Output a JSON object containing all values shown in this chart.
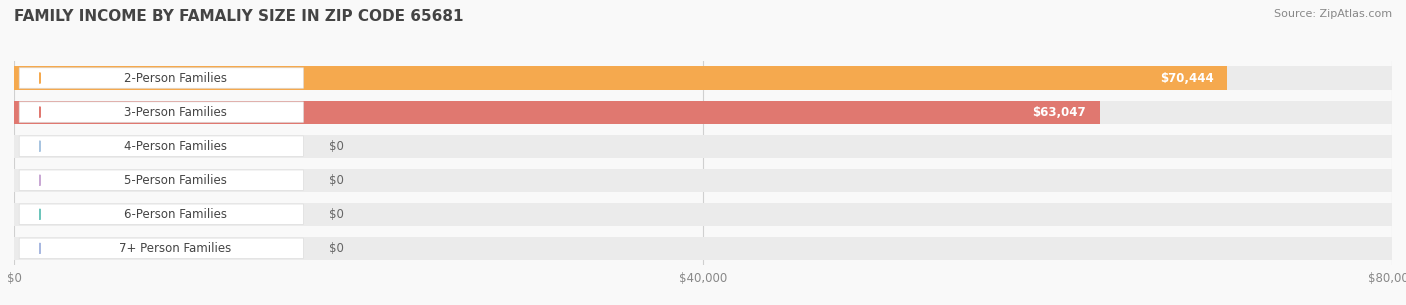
{
  "title": "FAMILY INCOME BY FAMALIY SIZE IN ZIP CODE 65681",
  "source": "Source: ZipAtlas.com",
  "categories": [
    "2-Person Families",
    "3-Person Families",
    "4-Person Families",
    "5-Person Families",
    "6-Person Families",
    "7+ Person Families"
  ],
  "values": [
    70444,
    63047,
    0,
    0,
    0,
    0
  ],
  "bar_colors": [
    "#F5A94E",
    "#E07870",
    "#A8C4E0",
    "#C9A8D4",
    "#6DC5BB",
    "#A8B8E0"
  ],
  "label_colors": [
    "#ffffff",
    "#ffffff",
    "#555555",
    "#555555",
    "#555555",
    "#555555"
  ],
  "value_labels": [
    "$70,444",
    "$63,047",
    "$0",
    "$0",
    "$0",
    "$0"
  ],
  "xlim": [
    0,
    80000
  ],
  "xtick_values": [
    0,
    40000,
    80000
  ],
  "xtick_labels": [
    "$0",
    "$40,000",
    "$80,000"
  ],
  "background_color": "#f9f9f9",
  "bar_bg_color": "#ebebeb",
  "title_fontsize": 11,
  "label_fontsize": 8.5,
  "value_fontsize": 8.5,
  "source_fontsize": 8
}
